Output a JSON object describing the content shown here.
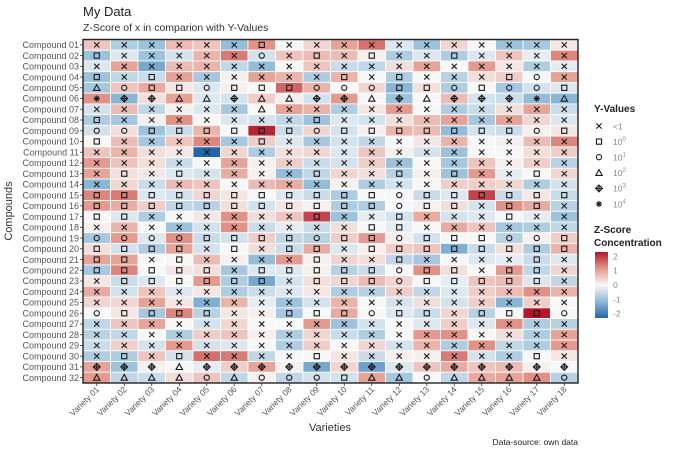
{
  "chart_data": {
    "type": "heatmap",
    "title": "My Data",
    "subtitle": "Z-Score of x in comparion with Y-Values",
    "xlabel": "Varieties",
    "ylabel": "Compounds",
    "caption": "Data-source: own data",
    "x_categories": [
      "Variety 01",
      "Variety 02",
      "Variety 03",
      "Variety 04",
      "Variety 05",
      "Variety 06",
      "Variety 07",
      "Variety 08",
      "Variety 09",
      "Variety 10",
      "Variety 11",
      "Variety 12",
      "Variety 13",
      "Variety 14",
      "Variety 15",
      "Variety 16",
      "Variety 17",
      "Variety 18"
    ],
    "y_categories": [
      "Compound 01",
      "Compound 02",
      "Compound 03",
      "Compound 04",
      "Compound 05",
      "Compound 06",
      "Compound 07",
      "Compound 08",
      "Compound 09",
      "Compound 10",
      "Compound 11",
      "Compound 12",
      "Compound 13",
      "Compound 14",
      "Compound 15",
      "Compound 16",
      "Compound 17",
      "Compound 18",
      "Compound 19",
      "Compound 20",
      "Compound 21",
      "Compound 22",
      "Compound 23",
      "Compound 24",
      "Compound 25",
      "Compound 26",
      "Compound 27",
      "Compound 28",
      "Compound 29",
      "Compound 30",
      "Compound 31",
      "Compound 32"
    ],
    "fill_legend": {
      "title_line1": "Z-Score",
      "title_line2": "Concentration",
      "ticks": [
        "2",
        "1",
        "0",
        "-1",
        "-2"
      ],
      "range": [
        -2.3,
        2.3
      ],
      "low_color": "#2166ac",
      "mid_color": "#f7f7f7",
      "high_color": "#b2182b"
    },
    "shape_legend": {
      "title": "Y-Values",
      "entries": [
        {
          "shape": "x-cross",
          "base": "<1",
          "exp": ""
        },
        {
          "shape": "square",
          "base": "10",
          "exp": "0"
        },
        {
          "shape": "circle",
          "base": "10",
          "exp": "1"
        },
        {
          "shape": "triangle",
          "base": "10",
          "exp": "2"
        },
        {
          "shape": "crossed-diamond",
          "base": "10",
          "exp": "3"
        },
        {
          "shape": "asterisk",
          "base": "10",
          "exp": "4"
        }
      ]
    },
    "z_scores": [
      [
        0.6,
        -0.8,
        -1,
        0.7,
        0.6,
        -1.1,
        1.2,
        0,
        0.4,
        1,
        1.5,
        -0.3,
        -1,
        0.4,
        0,
        -1,
        -0.9,
        0.2
      ],
      [
        -1,
        -0.3,
        -1,
        -0.4,
        0.8,
        1.4,
        -0.4,
        0.6,
        0.7,
        0.7,
        0.1,
        -0.8,
        -0.3,
        -0.8,
        -0.3,
        0.6,
        -0.2,
        1.3
      ],
      [
        -0.3,
        1,
        -1.4,
        0.7,
        0.8,
        -0.6,
        -1.1,
        0,
        0.6,
        -0.5,
        -0.6,
        0.3,
        1,
        0,
        1.1,
        0.2,
        -0.8,
        -0.2
      ],
      [
        -1,
        -0.6,
        -0.5,
        1,
        -0.9,
        0.1,
        1,
        0.8,
        -0.8,
        0.8,
        0,
        -0.8,
        0,
        -0.7,
        0.3,
        0.5,
        0,
        1
      ],
      [
        -0.9,
        0.6,
        0.9,
        0.2,
        -0.3,
        0.1,
        0,
        1.6,
        0.8,
        0,
        0.4,
        -1.2,
        0.3,
        -0.8,
        0,
        -0.9,
        -0.4,
        -0.3
      ],
      [
        1.2,
        -1.2,
        0.3,
        1,
        -0.3,
        -0.4,
        0.5,
        0.1,
        -0.4,
        1.1,
        0,
        -1,
        0,
        0.7,
        -0.4,
        -0.5,
        -1.1,
        -1.2
      ],
      [
        -0.4,
        0.7,
        -0.6,
        0.1,
        -0.3,
        -0.9,
        0,
        1,
        0.8,
        -0.8,
        0.2,
        1.1,
        0,
        -0.8,
        -0.5,
        0.3,
        1,
        -0.5
      ],
      [
        -0.8,
        -0.9,
        0.1,
        1.2,
        0,
        -0.3,
        -0.4,
        -0.6,
        -1,
        -0.3,
        -0.4,
        0.3,
        0.7,
        1,
        -0.9,
        1,
        0.4,
        -0.3
      ],
      [
        -0.4,
        0.3,
        -1,
        -0.5,
        0.8,
        0,
        2.2,
        -0.5,
        0.4,
        -0.4,
        0.1,
        0.8,
        0.7,
        -1.1,
        -0.4,
        -0.5,
        0.1,
        0.2
      ],
      [
        0,
        0.7,
        -0.9,
        0.6,
        1.3,
        -0.9,
        0.5,
        -0.3,
        -0.9,
        -0.4,
        -0.6,
        0,
        0.2,
        0.8,
        0,
        0.1,
        0.7,
        1.3
      ],
      [
        0.6,
        0.8,
        0.3,
        0.2,
        -2.3,
        0.4,
        -0.8,
        0.3,
        0.4,
        -0.3,
        0.6,
        0.1,
        -0.4,
        -1,
        0,
        0,
        0.3,
        0.5
      ],
      [
        1.1,
        0.6,
        0.3,
        -0.5,
        0,
        1,
        0.1,
        0.5,
        -0.5,
        -0.4,
        0.5,
        -1,
        0,
        -0.9,
        0.6,
        0.1,
        0.5,
        -0.7
      ],
      [
        1,
        0.3,
        0.2,
        -0.3,
        -0.4,
        0.9,
        0.1,
        -1.1,
        -0.6,
        0.4,
        0.3,
        -0.7,
        0.1,
        -1,
        1.1,
        -0.2,
        0,
        0.4
      ],
      [
        -1.2,
        0.4,
        -0.5,
        0.7,
        0.6,
        0,
        0.7,
        0.9,
        -1.1,
        0.1,
        -0.8,
        -0.4,
        0,
        0.5,
        0.5,
        0.4,
        -0.8,
        -0.4
      ],
      [
        1.3,
        1.4,
        -0.3,
        -0.4,
        0.4,
        0.2,
        0,
        -0.3,
        -0.5,
        -0.8,
        0,
        0,
        -0.5,
        -0.3,
        1.9,
        -0.5,
        0.2,
        -0.5
      ],
      [
        1.1,
        0.9,
        0.5,
        -0.6,
        -0.7,
        0.3,
        -0.4,
        0.2,
        0.1,
        -0.8,
        -0.8,
        0,
        0.1,
        0.3,
        -0.4,
        1.2,
        0.9,
        -0.7
      ],
      [
        0,
        -0.3,
        -0.8,
        0,
        0.2,
        1.2,
        0.3,
        0.6,
        1.9,
        -1,
        -0.2,
        -0.4,
        0.9,
        -0.4,
        -0.3,
        0,
        -0.2,
        -1
      ],
      [
        0.1,
        0.8,
        0,
        -1,
        -0.4,
        1.2,
        -0.5,
        -0.2,
        -0.5,
        0.3,
        0,
        -0.2,
        0,
        0.9,
        0.6,
        -0.9,
        -0.8,
        -0.6
      ],
      [
        -0.9,
        1.1,
        -0.3,
        1.2,
        -0.5,
        -0.4,
        0.5,
        -0.6,
        -0.7,
        0.5,
        1.1,
        0.1,
        -0.4,
        0,
        0,
        -0.7,
        0.1,
        0.5
      ],
      [
        0.3,
        -0.4,
        -0.8,
        1,
        -0.4,
        0,
        0.3,
        -0.5,
        0.9,
        -0.3,
        0.1,
        0.5,
        0.6,
        -1.3,
        -0.5,
        0.3,
        -0.8,
        0.8
      ],
      [
        1,
        1,
        0,
        0,
        0.7,
        0.1,
        -1.1,
        1.1,
        0.1,
        0.4,
        0.3,
        -0.6,
        -0.9,
        0,
        -0.3,
        -0.2,
        -0.5,
        -0.3
      ],
      [
        -0.9,
        1.3,
        0,
        0.2,
        0.3,
        -0.9,
        -0.3,
        -0.3,
        0.1,
        -0.7,
        -0.5,
        0,
        1.2,
        0.3,
        0,
        1.1,
        -0.6,
        0.4
      ],
      [
        0.2,
        -0.5,
        -0.3,
        0,
        1.1,
        -0.8,
        -1.4,
        -0.4,
        0.3,
        0.4,
        0.7,
        0.4,
        0,
        -0.2,
        0.6,
        0.7,
        -0.3,
        -0.6
      ],
      [
        0.9,
        -0.4,
        0.6,
        -0.3,
        0.2,
        -0.8,
        -0.5,
        -0.3,
        0.2,
        -0.8,
        -0.7,
        0.5,
        -0.6,
        -0.3,
        0.5,
        0.7,
        1.2,
        0.8
      ],
      [
        0.4,
        0.4,
        1,
        0.2,
        -1.3,
        0.8,
        -0.2,
        -1,
        -0.4,
        0.8,
        0,
        -0.4,
        0.3,
        -0.4,
        0.5,
        -1.2,
        0.5,
        0
      ],
      [
        0,
        0.2,
        -0.9,
        1.3,
        -0.7,
        0.2,
        0.1,
        -0.9,
        0,
        0.9,
        0,
        -0.3,
        -0.5,
        0.4,
        -0.7,
        0,
        2.3,
        0
      ],
      [
        -0.6,
        0.6,
        1,
        0,
        -0.4,
        0.4,
        0,
        0,
        1.1,
        -1,
        -0.4,
        0,
        -0.3,
        0.5,
        -0.3,
        1.2,
        -0.8,
        -0.7
      ],
      [
        -0.7,
        -0.6,
        0,
        -0.8,
        0.5,
        0.6,
        0.1,
        -0.8,
        0.4,
        -0.5,
        -0.8,
        0,
        1.1,
        1.2,
        0,
        0.3,
        -0.8,
        1
      ],
      [
        -0.5,
        0.5,
        -0.4,
        1.1,
        -0.4,
        -0.3,
        0,
        -0.8,
        0.5,
        0,
        0.4,
        -0.4,
        0.8,
        -0.8,
        1.2,
        -0.6,
        -0.8,
        1.1
      ],
      [
        -0.8,
        -0.8,
        0.6,
        -0.4,
        1.5,
        1.4,
        -0.6,
        0,
        0,
        0.2,
        -0.5,
        0.1,
        0.1,
        1.4,
        -0.4,
        -0.8,
        0,
        0.2
      ],
      [
        1,
        -1,
        0.1,
        0,
        -0.2,
        0.5,
        1,
        0.1,
        -1.4,
        0.4,
        -1.5,
        -0.3,
        0.6,
        0.9,
        0.6,
        0.7,
        0.1,
        0
      ],
      [
        1.1,
        -0.6,
        -0.5,
        0.3,
        0.6,
        -0.6,
        0.1,
        -0.6,
        -0.4,
        -0.4,
        1,
        -0.9,
        0,
        -0.6,
        0.9,
        1,
        1.2,
        -0.7
      ]
    ],
    "y_value_class": [
      "000000100000000000",
      "100000201010010000",
      "000000000000000000",
      "101000000101000120",
      "321121112221121221",
      "544334334434344453",
      "000000300000000000",
      "100000001000000000",
      "221111112111111121",
      "100000100000000000",
      "000000000000000000",
      "000000000000000000",
      "010100001001010010",
      "000000000000000000",
      "111111111112111111",
      "111111111112110110",
      "110000001001000100",
      "000000000011000000",
      "222211112112111221",
      "111101011011111111",
      "110100001001000010",
      "111110111112110110",
      "011111101112111110",
      "000000000000000000",
      "000000000000000000",
      "211110011121101112",
      "000000000000000000",
      "000000000000000000",
      "000000000000000000",
      "010100001000000010",
      "444344444444444444",
      "333323222133233332"
    ]
  }
}
